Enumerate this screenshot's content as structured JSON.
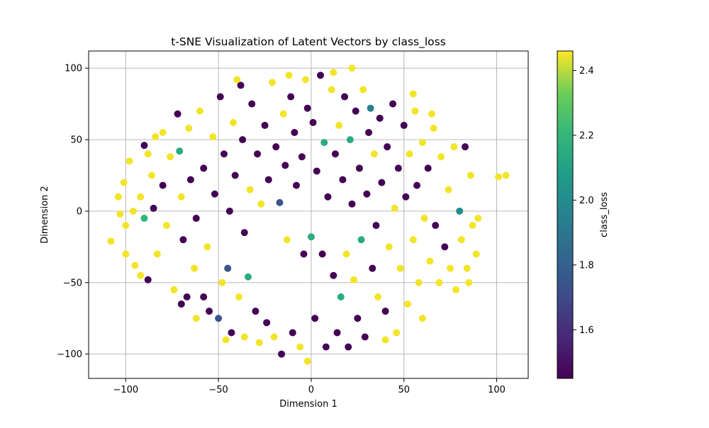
{
  "chart_data": {
    "type": "scatter",
    "title": "t-SNE Visualization of Latent Vectors by class_loss",
    "xlabel": "Dimension 1",
    "ylabel": "Dimension 2",
    "xlim": [
      -120,
      117
    ],
    "ylim": [
      -117,
      112
    ],
    "x_ticks": [
      -100,
      -50,
      0,
      50,
      100
    ],
    "x_tick_labels": [
      "−100",
      "−50",
      "0",
      "50",
      "100"
    ],
    "y_ticks": [
      -100,
      -50,
      0,
      50,
      100
    ],
    "y_tick_labels": [
      "−100",
      "−50",
      "0",
      "50",
      "100"
    ],
    "grid": true,
    "colormap": "viridis",
    "colorbar": {
      "label": "class_loss",
      "range": [
        1.45,
        2.46
      ],
      "ticks": [
        1.6,
        1.8,
        2.0,
        2.2,
        2.4
      ],
      "tick_labels": [
        "1.6",
        "1.8",
        "2.0",
        "2.2",
        "2.4"
      ]
    },
    "points": [
      [
        -108,
        -21,
        2.45
      ],
      [
        -103,
        -2,
        2.45
      ],
      [
        -101,
        20,
        2.45
      ],
      [
        -98,
        35,
        2.45
      ],
      [
        -95,
        -38,
        2.45
      ],
      [
        -92,
        10,
        2.45
      ],
      [
        -90,
        46,
        1.45
      ],
      [
        -90,
        -5,
        2.2
      ],
      [
        -88,
        -48,
        1.45
      ],
      [
        -86,
        25,
        2.45
      ],
      [
        -85,
        2,
        1.45
      ],
      [
        -84,
        52,
        2.45
      ],
      [
        -83,
        -30,
        2.45
      ],
      [
        -80,
        18,
        1.45
      ],
      [
        -78,
        -10,
        2.45
      ],
      [
        -76,
        38,
        2.45
      ],
      [
        -74,
        -55,
        2.45
      ],
      [
        -72,
        68,
        1.45
      ],
      [
        -71,
        42,
        2.15
      ],
      [
        -70,
        10,
        2.45
      ],
      [
        -69,
        -20,
        1.45
      ],
      [
        -67,
        -60,
        1.45
      ],
      [
        -66,
        58,
        2.45
      ],
      [
        -65,
        22,
        1.45
      ],
      [
        -63,
        -40,
        2.45
      ],
      [
        -62,
        -5,
        1.45
      ],
      [
        -60,
        70,
        2.45
      ],
      [
        -58,
        30,
        1.45
      ],
      [
        -56,
        -25,
        2.45
      ],
      [
        -55,
        -70,
        1.45
      ],
      [
        -53,
        52,
        2.45
      ],
      [
        -52,
        12,
        1.45
      ],
      [
        -50,
        -75,
        1.75
      ],
      [
        -49,
        80,
        1.45
      ],
      [
        -48,
        -50,
        2.45
      ],
      [
        -47,
        40,
        1.45
      ],
      [
        -45,
        -40,
        1.75
      ],
      [
        -44,
        0,
        1.45
      ],
      [
        -43,
        -85,
        1.45
      ],
      [
        -42,
        62,
        2.45
      ],
      [
        -41,
        25,
        1.45
      ],
      [
        -39,
        -60,
        2.45
      ],
      [
        -38,
        88,
        1.45
      ],
      [
        -37,
        50,
        1.45
      ],
      [
        -36,
        -15,
        1.45
      ],
      [
        -34,
        -46,
        2.15
      ],
      [
        -33,
        15,
        2.45
      ],
      [
        -32,
        75,
        1.45
      ],
      [
        -30,
        -70,
        1.45
      ],
      [
        -29,
        40,
        1.45
      ],
      [
        -28,
        -92,
        2.45
      ],
      [
        -27,
        5,
        2.45
      ],
      [
        -25,
        60,
        1.45
      ],
      [
        -24,
        -78,
        1.45
      ],
      [
        -23,
        22,
        1.45
      ],
      [
        -21,
        90,
        2.45
      ],
      [
        -20,
        -88,
        2.45
      ],
      [
        -19,
        45,
        1.45
      ],
      [
        -17,
        6,
        1.75
      ],
      [
        -16,
        -100,
        1.45
      ],
      [
        -15,
        68,
        2.45
      ],
      [
        -14,
        32,
        1.45
      ],
      [
        -13,
        -20,
        2.45
      ],
      [
        -11,
        80,
        1.45
      ],
      [
        -10,
        -85,
        1.45
      ],
      [
        -9,
        55,
        1.45
      ],
      [
        -8,
        18,
        1.45
      ],
      [
        -6,
        -95,
        2.45
      ],
      [
        -5,
        38,
        1.45
      ],
      [
        -4,
        -30,
        1.45
      ],
      [
        -3,
        92,
        2.45
      ],
      [
        -2,
        72,
        1.45
      ],
      [
        0,
        -18,
        2.15
      ],
      [
        1,
        62,
        1.45
      ],
      [
        2,
        -75,
        1.45
      ],
      [
        3,
        28,
        1.45
      ],
      [
        5,
        95,
        1.45
      ],
      [
        6,
        -30,
        1.45
      ],
      [
        7,
        48,
        2.15
      ],
      [
        8,
        -95,
        1.45
      ],
      [
        9,
        10,
        1.45
      ],
      [
        11,
        85,
        2.45
      ],
      [
        12,
        -45,
        1.45
      ],
      [
        13,
        40,
        1.45
      ],
      [
        14,
        -85,
        1.45
      ],
      [
        15,
        60,
        2.45
      ],
      [
        16,
        -60,
        2.15
      ],
      [
        17,
        22,
        1.45
      ],
      [
        18,
        80,
        1.45
      ],
      [
        19,
        -30,
        2.45
      ],
      [
        20,
        -95,
        1.45
      ],
      [
        21,
        50,
        2.15
      ],
      [
        22,
        5,
        1.45
      ],
      [
        23,
        -48,
        2.45
      ],
      [
        24,
        70,
        1.45
      ],
      [
        25,
        -75,
        1.45
      ],
      [
        26,
        30,
        1.45
      ],
      [
        27,
        -20,
        2.15
      ],
      [
        28,
        85,
        2.45
      ],
      [
        29,
        -88,
        1.45
      ],
      [
        30,
        12,
        1.45
      ],
      [
        31,
        55,
        1.45
      ],
      [
        32,
        72,
        1.95
      ],
      [
        33,
        -40,
        1.45
      ],
      [
        34,
        40,
        2.45
      ],
      [
        35,
        -10,
        1.45
      ],
      [
        36,
        -60,
        2.45
      ],
      [
        37,
        65,
        1.45
      ],
      [
        38,
        20,
        1.45
      ],
      [
        40,
        -70,
        1.45
      ],
      [
        41,
        45,
        1.45
      ],
      [
        42,
        -25,
        2.45
      ],
      [
        44,
        75,
        1.45
      ],
      [
        45,
        2,
        2.45
      ],
      [
        46,
        -85,
        2.45
      ],
      [
        47,
        30,
        1.45
      ],
      [
        48,
        -40,
        2.45
      ],
      [
        50,
        60,
        1.45
      ],
      [
        51,
        10,
        1.45
      ],
      [
        52,
        -65,
        2.45
      ],
      [
        53,
        40,
        2.45
      ],
      [
        55,
        -20,
        2.45
      ],
      [
        56,
        70,
        2.45
      ],
      [
        57,
        18,
        1.45
      ],
      [
        58,
        -50,
        2.45
      ],
      [
        60,
        48,
        2.45
      ],
      [
        61,
        -5,
        2.45
      ],
      [
        63,
        30,
        1.45
      ],
      [
        64,
        -35,
        2.45
      ],
      [
        66,
        58,
        2.45
      ],
      [
        67,
        -10,
        1.45
      ],
      [
        69,
        -50,
        2.45
      ],
      [
        70,
        38,
        2.45
      ],
      [
        72,
        -25,
        1.45
      ],
      [
        74,
        15,
        2.45
      ],
      [
        75,
        -40,
        2.45
      ],
      [
        77,
        45,
        2.45
      ],
      [
        78,
        -55,
        2.45
      ],
      [
        80,
        0,
        2.0
      ],
      [
        81,
        -20,
        2.45
      ],
      [
        83,
        45,
        1.45
      ],
      [
        84,
        -40,
        2.45
      ],
      [
        86,
        25,
        2.45
      ],
      [
        87,
        -10,
        2.45
      ],
      [
        89,
        -30,
        2.45
      ],
      [
        101,
        24,
        2.45
      ],
      [
        105,
        25,
        2.45
      ],
      [
        -104,
        10,
        2.45
      ],
      [
        -100,
        -30,
        2.45
      ],
      [
        -96,
        0,
        2.45
      ],
      [
        -62,
        -75,
        2.45
      ],
      [
        -70,
        -65,
        1.45
      ],
      [
        -58,
        -60,
        1.45
      ],
      [
        -46,
        -90,
        2.45
      ],
      [
        -36,
        -88,
        2.45
      ],
      [
        -12,
        95,
        2.45
      ],
      [
        12,
        97,
        2.45
      ],
      [
        -40,
        92,
        2.45
      ],
      [
        22,
        100,
        2.45
      ],
      [
        55,
        82,
        2.45
      ],
      [
        65,
        68,
        2.45
      ],
      [
        -80,
        55,
        2.45
      ],
      [
        -88,
        40,
        2.45
      ],
      [
        -92,
        -45,
        2.45
      ],
      [
        -100,
        -10,
        2.45
      ],
      [
        90,
        -5,
        2.45
      ],
      [
        85,
        -50,
        2.45
      ],
      [
        60,
        -75,
        2.45
      ],
      [
        40,
        -90,
        2.45
      ],
      [
        -2,
        -105,
        2.45
      ]
    ]
  }
}
